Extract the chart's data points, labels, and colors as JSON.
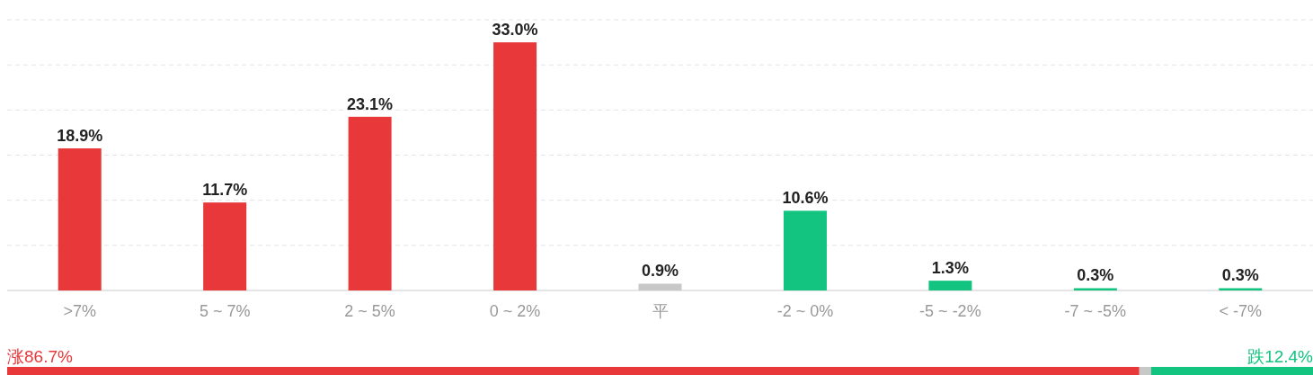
{
  "chart_data": [
    {
      "type": "bar",
      "categories": [
        ">7%",
        "5 ~ 7%",
        "2 ~ 5%",
        "0 ~ 2%",
        "平",
        "-2 ~ 0%",
        "-5 ~ -2%",
        "-7 ~ -5%",
        "< -7%"
      ],
      "values": [
        18.9,
        11.7,
        23.1,
        33.0,
        0.9,
        10.6,
        1.3,
        0.3,
        0.3
      ],
      "value_labels": [
        "18.9%",
        "11.7%",
        "23.1%",
        "33.0%",
        "0.9%",
        "10.6%",
        "1.3%",
        "0.3%",
        "0.3%"
      ],
      "colors": [
        "#e8383a",
        "#e8383a",
        "#e8383a",
        "#e8383a",
        "#c8c8c8",
        "#12c47f",
        "#12c47f",
        "#12c47f",
        "#12c47f"
      ],
      "ylim": [
        0,
        36
      ],
      "yticks": [
        {
          "value": 0,
          "label": null
        },
        {
          "value": 6,
          "label": null
        },
        {
          "value": 12,
          "label": null
        },
        {
          "value": 18,
          "label": null
        },
        {
          "value": 24,
          "label": null
        },
        {
          "value": 30,
          "label": null
        },
        {
          "value": 36,
          "label": null
        }
      ],
      "grid": "y",
      "tick_labels": "x"
    },
    {
      "type": "bar",
      "orientation": "horizontal",
      "stacked": true,
      "categories": [
        null
      ],
      "series": [
        {
          "color": "#e8383a",
          "values": [
            86.7
          ],
          "value_labels": [
            "涨86.7%"
          ]
        },
        {
          "color": "#c8c8c8",
          "values": [
            0.9
          ],
          "value_labels": [
            null
          ]
        },
        {
          "color": "#12c47f",
          "values": [
            12.4
          ],
          "value_labels": [
            "跌12.4%"
          ]
        }
      ],
      "tick_labels": false
    }
  ]
}
